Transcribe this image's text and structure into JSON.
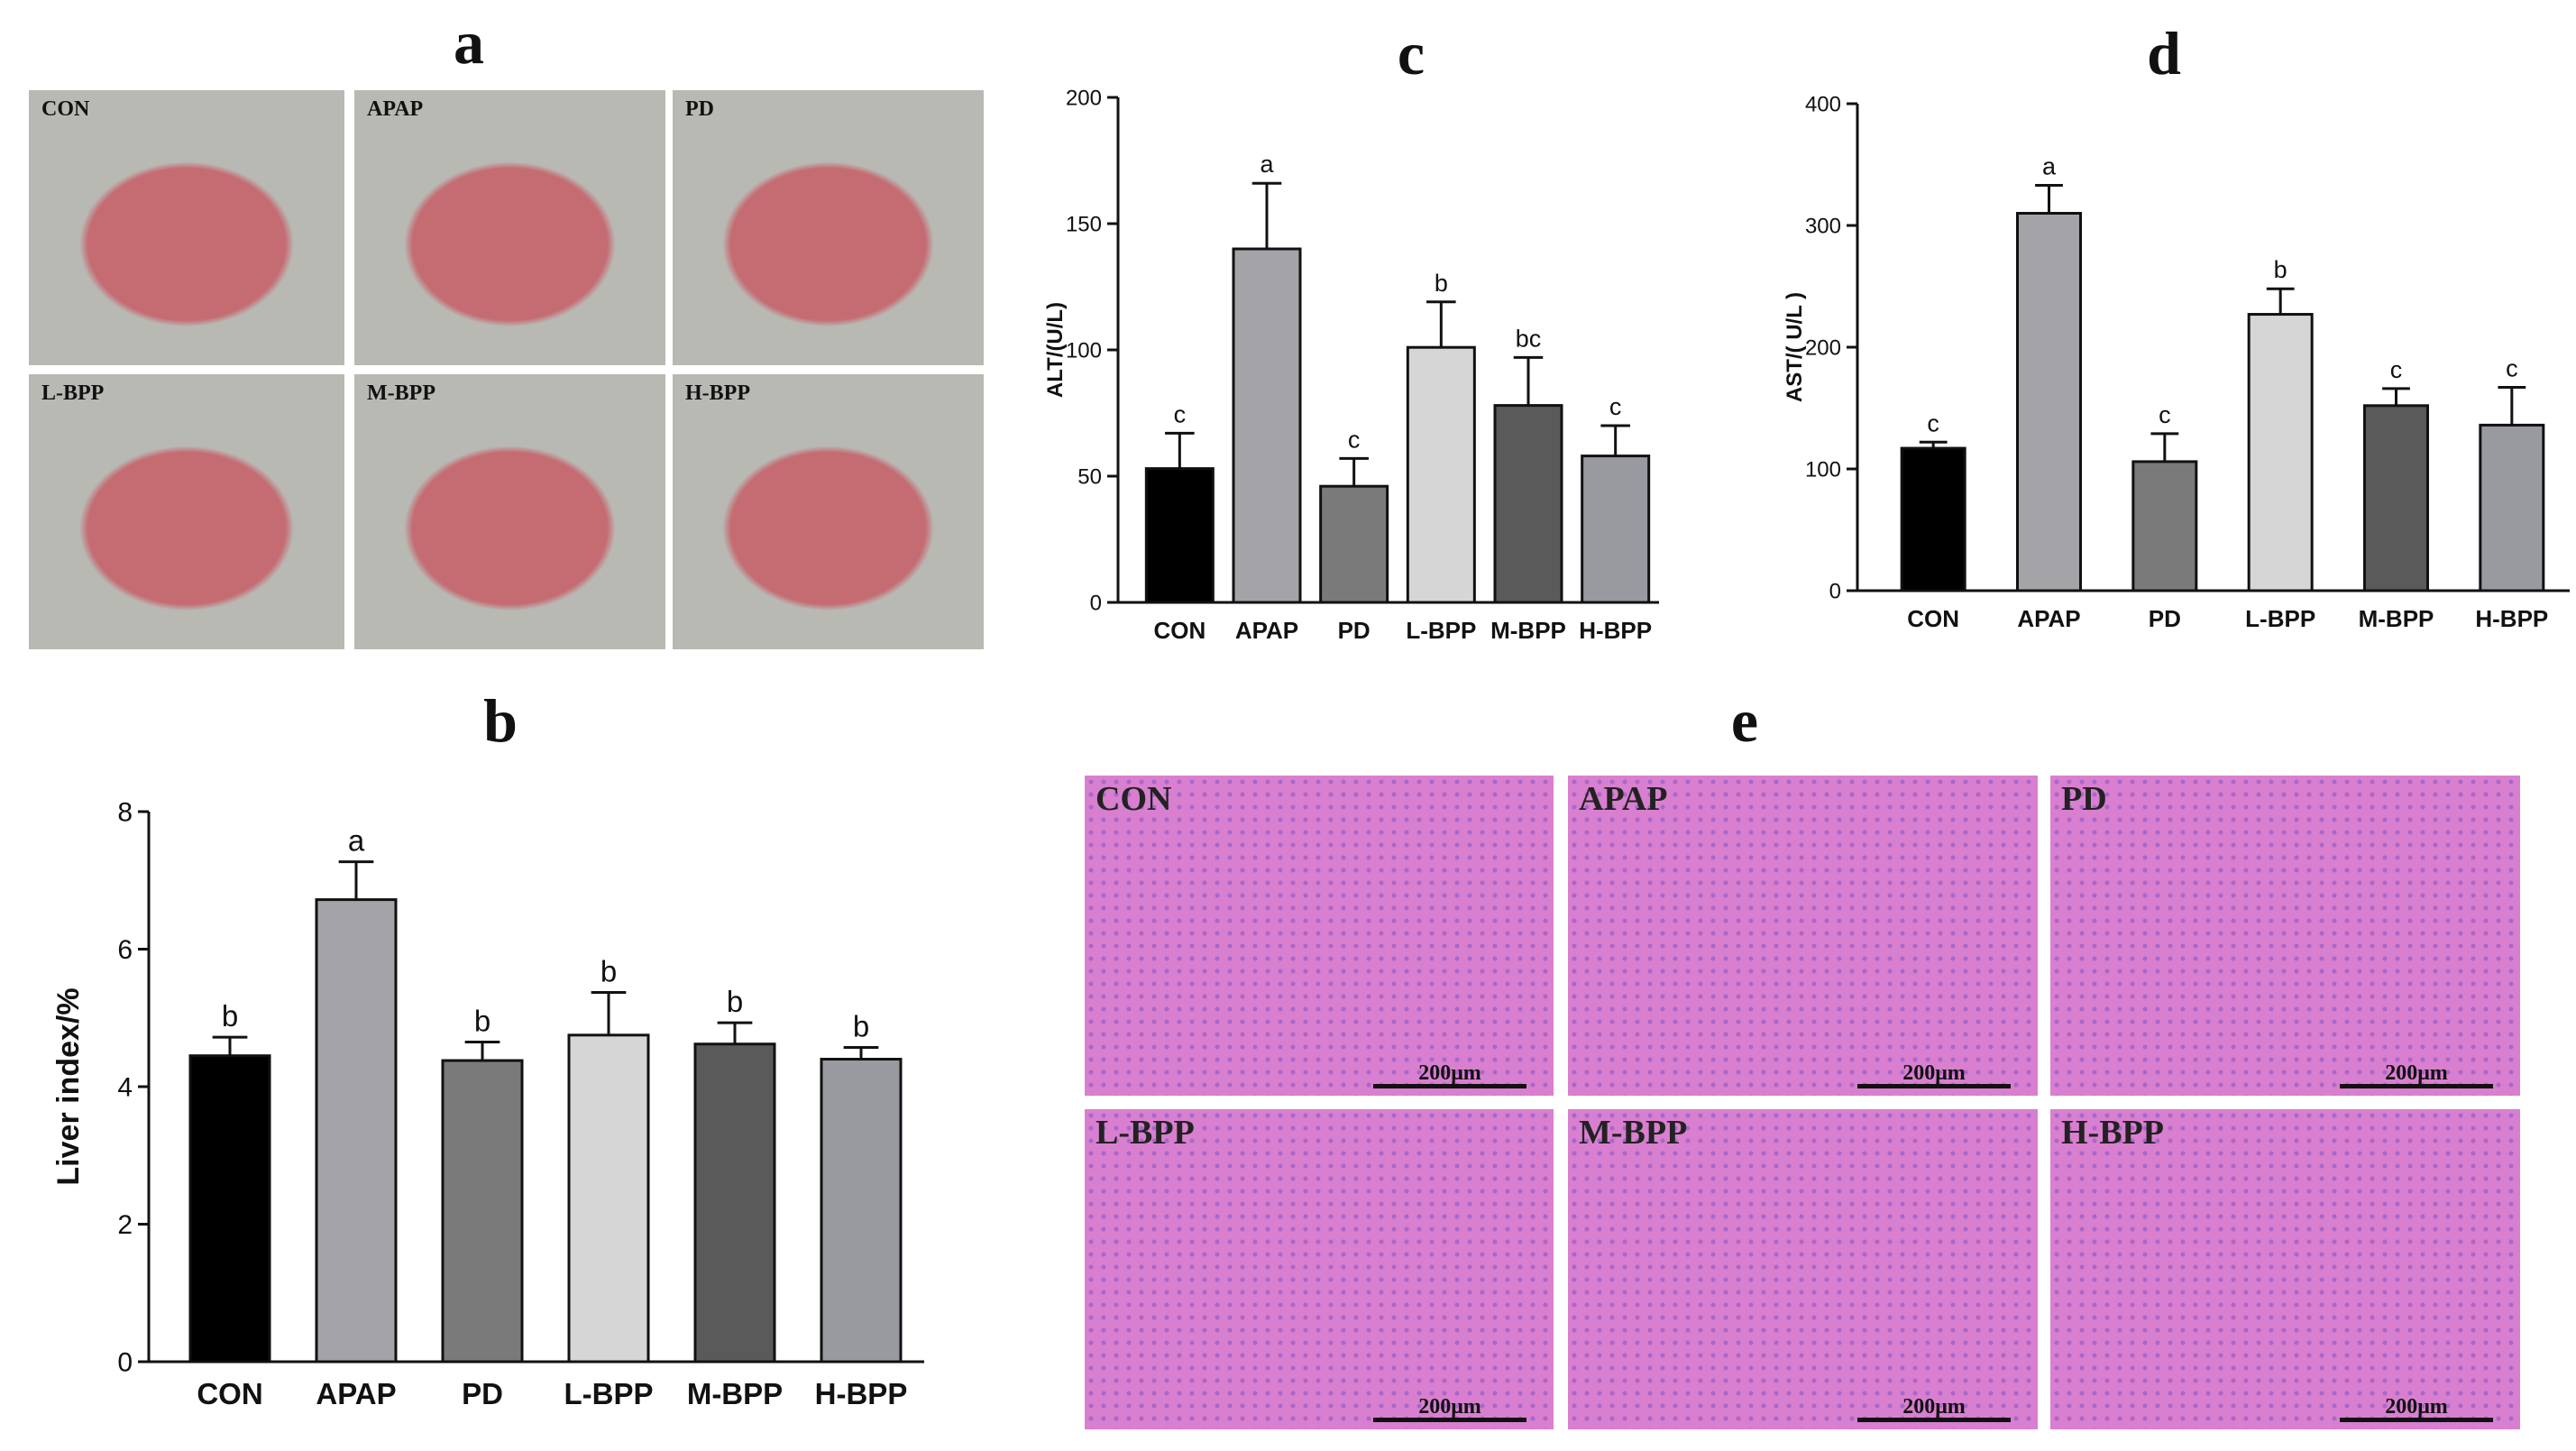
{
  "panel_labels": {
    "a": "a",
    "b": "b",
    "c": "c",
    "d": "d",
    "e": "e"
  },
  "photos": [
    {
      "label": "CON"
    },
    {
      "label": "APAP"
    },
    {
      "label": "PD"
    },
    {
      "label": "L-BPP"
    },
    {
      "label": "M-BPP"
    },
    {
      "label": "H-BPP"
    }
  ],
  "histology": [
    {
      "label": "CON",
      "scale": "200μm"
    },
    {
      "label": "APAP",
      "scale": "200μm"
    },
    {
      "label": "PD",
      "scale": "200μm"
    },
    {
      "label": "L-BPP",
      "scale": "200μm"
    },
    {
      "label": "M-BPP",
      "scale": "200μm"
    },
    {
      "label": "H-BPP",
      "scale": "200μm"
    }
  ],
  "colors": {
    "bars": [
      "#000000",
      "#a3a3a8",
      "#7a7a7a",
      "#d6d6d6",
      "#5a5a5a",
      "#999aa0"
    ],
    "photo_bg": "#b9b9b4",
    "liver": "#c56b72",
    "histo_bg": "#d97fd0",
    "histo_cell": "#a867c9"
  },
  "chart_data": [
    {
      "id": "b",
      "type": "bar",
      "categories": [
        "CON",
        "APAP",
        "PD",
        "L-BPP",
        "M-BPP",
        "H-BPP"
      ],
      "values": [
        4.45,
        6.72,
        4.38,
        4.75,
        4.62,
        4.4
      ],
      "errors": [
        0.27,
        0.55,
        0.27,
        0.62,
        0.31,
        0.17
      ],
      "letters": [
        "b",
        "a",
        "b",
        "b",
        "b",
        "b"
      ],
      "ylabel": "Liver index/%",
      "ylim": [
        0,
        8
      ],
      "yticks": [
        0,
        2,
        4,
        6,
        8
      ]
    },
    {
      "id": "c",
      "type": "bar",
      "categories": [
        "CON",
        "APAP",
        "PD",
        "L-BPP",
        "M-BPP",
        "H-BPP"
      ],
      "values": [
        53,
        140,
        46,
        101,
        78,
        58
      ],
      "errors": [
        14,
        26,
        11,
        18,
        19,
        12
      ],
      "letters": [
        "c",
        "a",
        "c",
        "b",
        "bc",
        "c"
      ],
      "ylabel": "ALT/(U/L)",
      "ylim": [
        0,
        200
      ],
      "yticks": [
        0,
        50,
        100,
        150,
        200
      ]
    },
    {
      "id": "d",
      "type": "bar",
      "categories": [
        "CON",
        "APAP",
        "PD",
        "L-BPP",
        "M-BPP",
        "H-BPP"
      ],
      "values": [
        117,
        310,
        106,
        227,
        152,
        136
      ],
      "errors": [
        5,
        23,
        23,
        21,
        14,
        31
      ],
      "letters": [
        "c",
        "a",
        "c",
        "b",
        "c",
        "c"
      ],
      "ylabel": "AST/( U/L )",
      "ylim": [
        0,
        400
      ],
      "yticks": [
        0,
        100,
        200,
        300,
        400
      ]
    }
  ]
}
